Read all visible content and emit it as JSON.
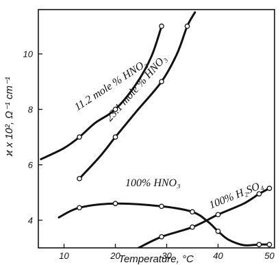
{
  "chart_data": {
    "type": "line",
    "title": "",
    "xlabel": "Temperature, °C",
    "ylabel": "ϰ x 10², Ω⁻¹ cm⁻¹",
    "xlim": [
      5,
      51
    ],
    "ylim": [
      3.0,
      11.6
    ],
    "x_ticks": [
      10,
      20,
      30,
      40,
      50
    ],
    "y_ticks": [
      4,
      6,
      8,
      10
    ],
    "grid": false,
    "legend": "none",
    "series": [
      {
        "name": "11.2 mole % HNO₃",
        "curve": [
          [
            5.5,
            6.2
          ],
          [
            10,
            6.6
          ],
          [
            13,
            7.0
          ],
          [
            16,
            7.5
          ],
          [
            20,
            8.0
          ],
          [
            24,
            8.9
          ],
          [
            27,
            9.9
          ],
          [
            29,
            11.0
          ]
        ],
        "points": [
          [
            13,
            7.0
          ],
          [
            20,
            8.0
          ],
          [
            29,
            11.0
          ]
        ]
      },
      {
        "name": "23.1 mole % HNO₃",
        "curve": [
          [
            13,
            5.5
          ],
          [
            17,
            6.3
          ],
          [
            20,
            7.0
          ],
          [
            24,
            7.9
          ],
          [
            29,
            9.0
          ],
          [
            32,
            10.0
          ],
          [
            34,
            11.0
          ],
          [
            35.5,
            11.5
          ]
        ],
        "points": [
          [
            13,
            5.5
          ],
          [
            20,
            7.0
          ],
          [
            29,
            9.0
          ],
          [
            34,
            11.0
          ]
        ]
      },
      {
        "name": "100% HNO₃",
        "curve": [
          [
            9,
            4.1
          ],
          [
            13,
            4.45
          ],
          [
            20,
            4.6
          ],
          [
            29,
            4.5
          ],
          [
            35,
            4.3
          ],
          [
            38,
            3.95
          ],
          [
            40,
            3.6
          ],
          [
            42,
            3.3
          ],
          [
            45,
            3.1
          ],
          [
            48,
            3.12
          ],
          [
            50,
            3.12
          ]
        ],
        "points": [
          [
            13,
            4.45
          ],
          [
            20,
            4.6
          ],
          [
            29,
            4.5
          ],
          [
            35,
            4.3
          ],
          [
            40,
            3.6
          ],
          [
            48,
            3.12
          ],
          [
            50,
            3.12
          ]
        ]
      },
      {
        "name": "100% H₂SO₄",
        "curve": [
          [
            24.5,
            3.0
          ],
          [
            29,
            3.4
          ],
          [
            35,
            3.75
          ],
          [
            40,
            4.2
          ],
          [
            45,
            4.6
          ],
          [
            48,
            4.95
          ],
          [
            50,
            5.15
          ]
        ],
        "points": [
          [
            29,
            3.4
          ],
          [
            35,
            3.75
          ],
          [
            40,
            4.2
          ],
          [
            48,
            4.95
          ],
          [
            50,
            5.15
          ]
        ]
      }
    ],
    "series_labels": [
      "11.2 mole % HNO₃",
      "23.1 mole % HNO₃",
      "100% HNO₃",
      "100% H₂SO₄"
    ]
  }
}
